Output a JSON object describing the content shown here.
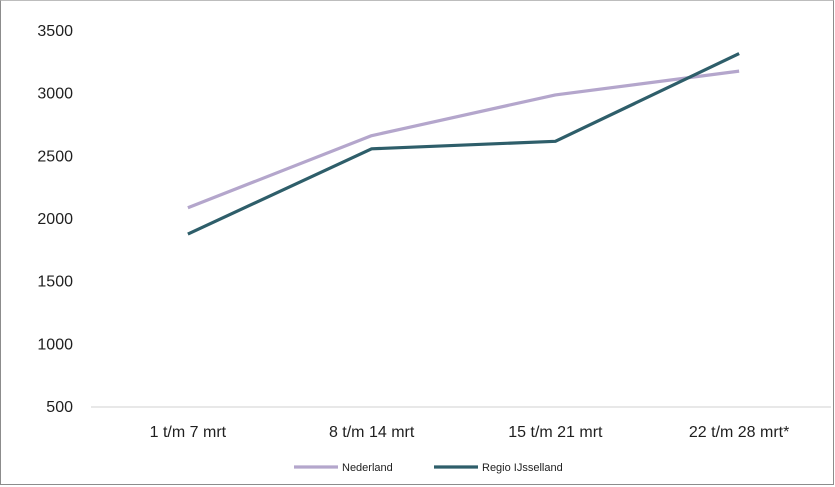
{
  "chart_data": {
    "type": "line",
    "categories": [
      "1 t/m 7 mrt",
      "8 t/m 14 mrt",
      "15 t/m 21 mrt",
      "22 t/m 28 mrt*"
    ],
    "series": [
      {
        "name": "Nederland",
        "values": [
          2090,
          2665,
          2990,
          3180
        ],
        "color": "#b4a6cc"
      },
      {
        "name": "Regio IJsselland",
        "values": [
          1880,
          2560,
          2620,
          3320
        ],
        "color": "#2e5e6a"
      }
    ],
    "ylim": [
      500,
      3500
    ],
    "yticks": [
      500,
      1000,
      1500,
      2000,
      2500,
      3000,
      3500
    ],
    "grid": false,
    "legend": "bottom",
    "title": "",
    "xlabel": "",
    "ylabel": ""
  }
}
